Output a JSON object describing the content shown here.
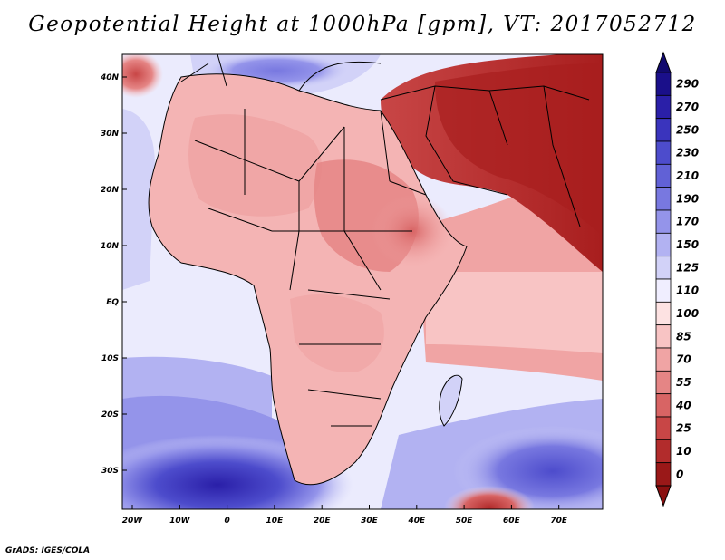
{
  "title": "Geopotential Height at 1000hPa [gpm], VT: 2017052712",
  "credit": "GrADS: IGES/COLA",
  "axes": {
    "x_ticks": [
      "20W",
      "10W",
      "0",
      "10E",
      "20E",
      "30E",
      "40E",
      "50E",
      "60E",
      "70E"
    ],
    "y_ticks": [
      "40N",
      "30N",
      "20N",
      "10N",
      "EQ",
      "10S",
      "20S",
      "30S"
    ]
  },
  "colorbar": {
    "labels": [
      "290",
      "270",
      "250",
      "230",
      "210",
      "190",
      "170",
      "150",
      "125",
      "110",
      "100",
      "85",
      "70",
      "55",
      "40",
      "25",
      "10",
      "0"
    ],
    "colors": [
      "#1a0f8a",
      "#2a1fa8",
      "#3a34bd",
      "#4d4ccc",
      "#6161d6",
      "#7878e0",
      "#9494ea",
      "#b2b2f2",
      "#d2d2f8",
      "#f0eeff",
      "#fde2e2",
      "#f8c4c4",
      "#f0a4a4",
      "#e58585",
      "#d86464",
      "#c84646",
      "#b22c2c",
      "#9a1818"
    ],
    "top_color": "#120a6e",
    "bottom_color": "#8a1010"
  },
  "palette": {
    "ocean_light": "#ebebfd",
    "blue_mid": "#b2b2f2",
    "blue_deep": "#3a34bd",
    "land_pink": "#f4b4b4",
    "red_mid": "#e58585",
    "red_deep": "#a81e1e",
    "boundary": "#000000"
  }
}
